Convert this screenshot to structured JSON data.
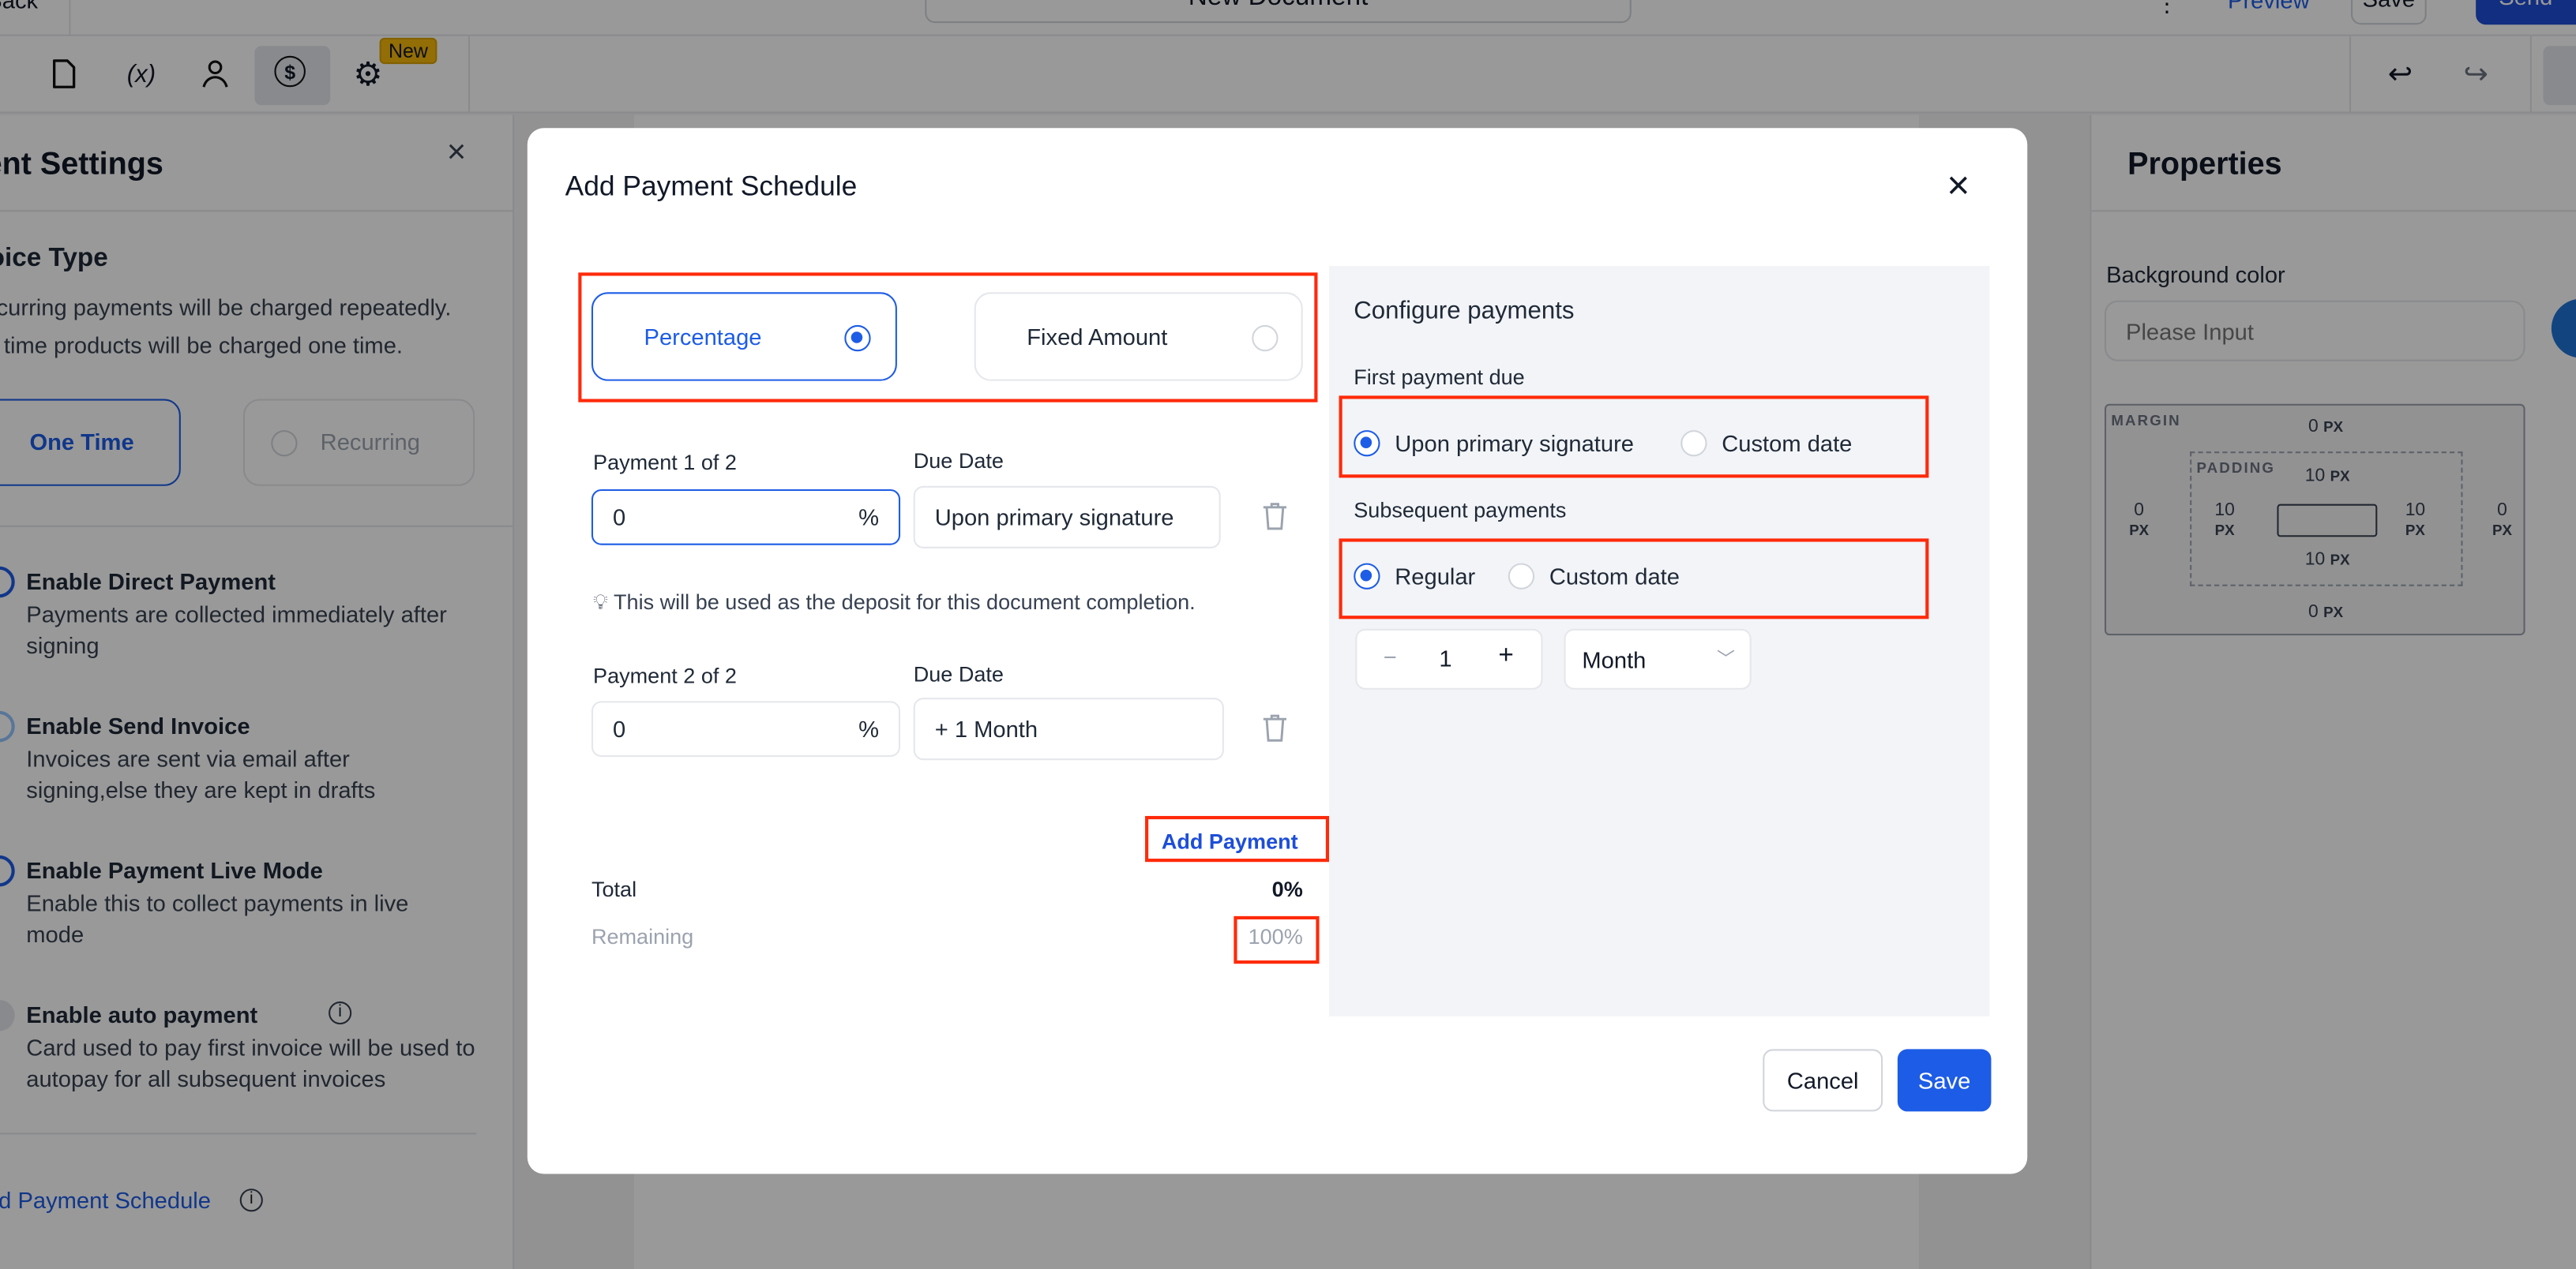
{
  "topbar": {
    "back_label": "Back",
    "document_title": "New Document",
    "preview_label": "Preview",
    "save_label": "Save",
    "send_label": "Send"
  },
  "toolbar": {
    "icons": [
      "document-icon",
      "variables-icon",
      "user-icon",
      "dollar-icon",
      "gear-icon"
    ],
    "new_badge": "New",
    "undo": "undo-icon",
    "redo": "redo-icon"
  },
  "left_panel": {
    "title": "Payment Settings",
    "invoice_type_title": "Invoice Type",
    "invoice_desc_1": "Recurring payments will be charged repeatedly.",
    "invoice_desc_2": "One time products will be charged one time.",
    "one_time": "One Time",
    "recurring": "Recurring",
    "options": [
      {
        "title": "Enable Direct Payment",
        "desc": "Payments are collected immediately after signing"
      },
      {
        "title": "Enable Send Invoice",
        "desc": "Invoices are sent via email after signing,else they are kept in drafts"
      },
      {
        "title": "Enable Payment Live Mode",
        "desc": "Enable this to collect payments in live mode"
      },
      {
        "title": "Enable auto payment",
        "desc": "Card used to pay first invoice will be used to autopay for all subsequent invoices"
      }
    ],
    "add_schedule": "Add Payment Schedule"
  },
  "properties": {
    "title": "Properties",
    "bg_label": "Background color",
    "bg_placeholder": "Please Input",
    "margin_label": "MARGIN",
    "padding_label": "PADDING",
    "margin": {
      "top": "0",
      "right": "0",
      "bottom": "0",
      "left": "0"
    },
    "padding": {
      "top": "10",
      "right": "10",
      "bottom": "10",
      "left": "10"
    },
    "unit": "PX"
  },
  "modal": {
    "title": "Add Payment Schedule",
    "type_options": {
      "percentage": "Percentage",
      "fixed": "Fixed Amount",
      "selected": "Percentage"
    },
    "payments": [
      {
        "label": "Payment 1 of 2",
        "value": "0",
        "unit": "%",
        "due_label": "Due Date",
        "due": "Upon primary signature"
      },
      {
        "label": "Payment 2 of 2",
        "value": "0",
        "unit": "%",
        "due_label": "Due Date",
        "due": "+ 1 Month"
      }
    ],
    "hint": "This will be used as the deposit for this document completion.",
    "add_payment": "Add Payment",
    "total_label": "Total",
    "total_value": "0%",
    "remaining_label": "Remaining",
    "remaining_value": "100%",
    "configure": {
      "title": "Configure payments",
      "first_due_label": "First payment due",
      "first_opt1": "Upon primary signature",
      "first_opt2": "Custom date",
      "subsequent_label": "Subsequent payments",
      "sub_opt1": "Regular",
      "sub_opt2": "Custom date",
      "interval": "1",
      "period": "Month"
    },
    "cancel": "Cancel",
    "save": "Save"
  },
  "colors": {
    "primary": "#1d5ce6",
    "highlight": "#ff2a0a",
    "badge": "#f5b70a"
  }
}
